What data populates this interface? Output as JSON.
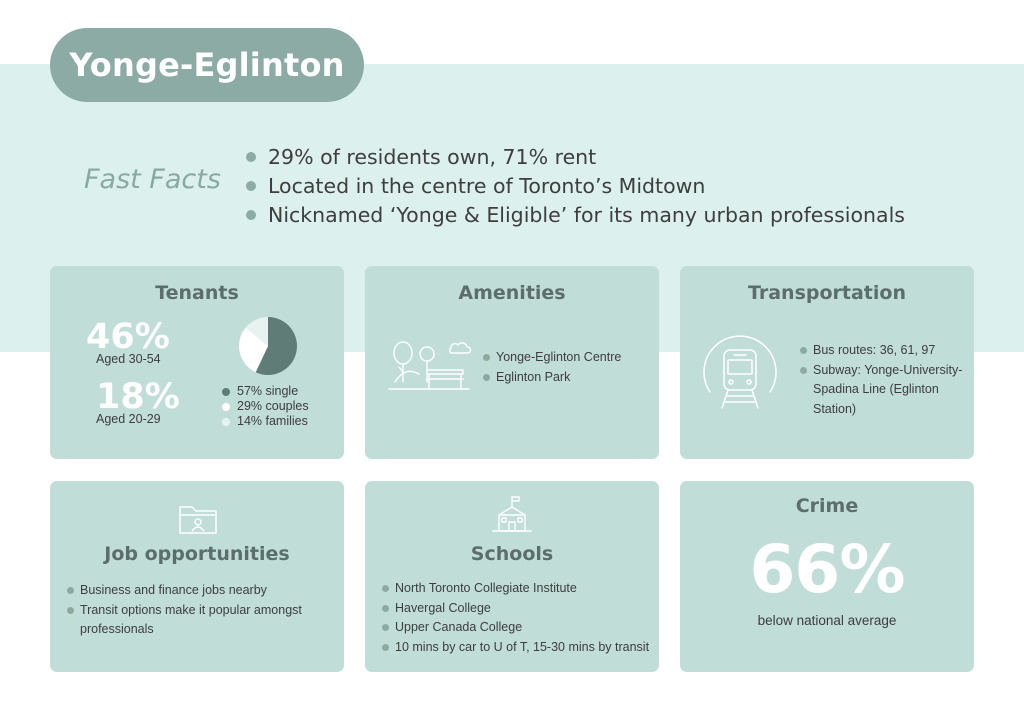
{
  "header": {
    "title": "Yonge-Eglinton"
  },
  "fast_facts": {
    "label": "Fast Facts",
    "items": [
      "29% of residents own, 71% rent",
      "Located in the centre of Toronto’s Midtown",
      "Nicknamed ‘Yonge & Eligible’ for its many urban professionals"
    ]
  },
  "tenants": {
    "title": "Tenants",
    "stat1": {
      "value": "46%",
      "label": "Aged 30-54"
    },
    "stat2": {
      "value": "18%",
      "label": "Aged 20-29"
    },
    "legend": [
      {
        "label": "57% single",
        "value": 57,
        "color": "#5f7c76"
      },
      {
        "label": "29% couples",
        "value": 29,
        "color": "#ffffff"
      },
      {
        "label": "14% families",
        "value": 14,
        "color": "#e6f3f1"
      }
    ]
  },
  "amenities": {
    "title": "Amenities",
    "icon": "park-icon",
    "items": [
      "Yonge-Eglinton Centre",
      "Eglinton Park"
    ]
  },
  "transportation": {
    "title": "Transportation",
    "icon": "train-icon",
    "items": [
      "Bus routes: 36, 61, 97",
      "Subway: Yonge-University-Spadina Line (Eglinton Station)"
    ]
  },
  "jobs": {
    "title": "Job opportunities",
    "icon": "folder-icon",
    "items": [
      "Business and finance jobs nearby",
      "Transit options make it popular amongst professionals"
    ]
  },
  "schools": {
    "title": "Schools",
    "icon": "school-icon",
    "items": [
      "North Toronto Collegiate Institute",
      "Havergal College",
      "Upper Canada College",
      "10 mins by car to U of T, 15-30 mins by transit"
    ]
  },
  "crime": {
    "title": "Crime",
    "value": "66%",
    "label": "below national average"
  },
  "colors": {
    "band": "#dcf0ed",
    "card": "#c1ddd8",
    "accent": "#8caba4",
    "dark_slice": "#5f7c76"
  }
}
